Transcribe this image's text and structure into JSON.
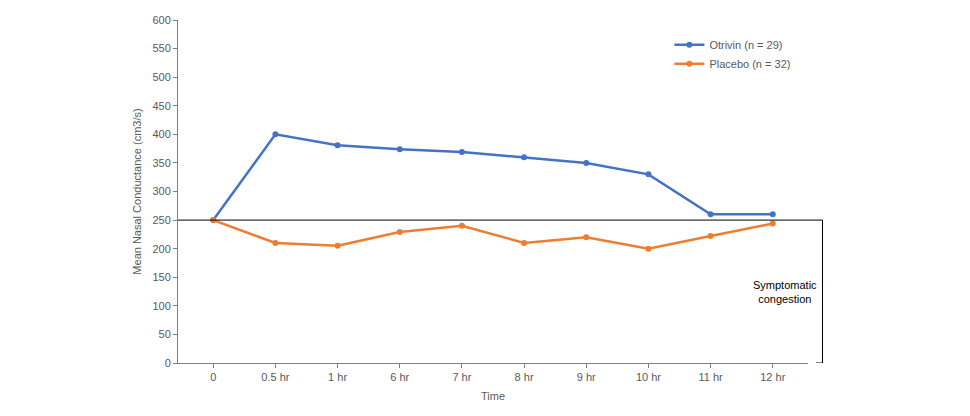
{
  "chart_data": {
    "type": "line",
    "x_label": "Time",
    "y_label": "Mean Nasal Conductance (cm3/s)",
    "categories": [
      "0",
      "0.5 hr",
      "1 hr",
      "6 hr",
      "7 hr",
      "8 hr",
      "9 hr",
      "10 hr",
      "11 hr",
      "12 hr"
    ],
    "series": [
      {
        "name": "Otrivin (n = 29)",
        "color": "#4472c4",
        "marker": "circle",
        "values": [
          250,
          400,
          381,
          374,
          369,
          360,
          350,
          330,
          260,
          260
        ]
      },
      {
        "name": "Placebo (n = 32)",
        "color": "#ed7d31",
        "marker": "circle",
        "values": [
          250,
          210,
          205,
          229,
          240,
          210,
          220,
          200,
          222,
          244
        ]
      }
    ],
    "ylim": [
      0,
      600
    ],
    "yticks": [
      0,
      50,
      100,
      150,
      200,
      250,
      300,
      350,
      400,
      450,
      500,
      550,
      600
    ],
    "grid": false,
    "legend": "upper right",
    "reference_line": {
      "value": 250,
      "label": "Symptomatic congestion"
    }
  }
}
